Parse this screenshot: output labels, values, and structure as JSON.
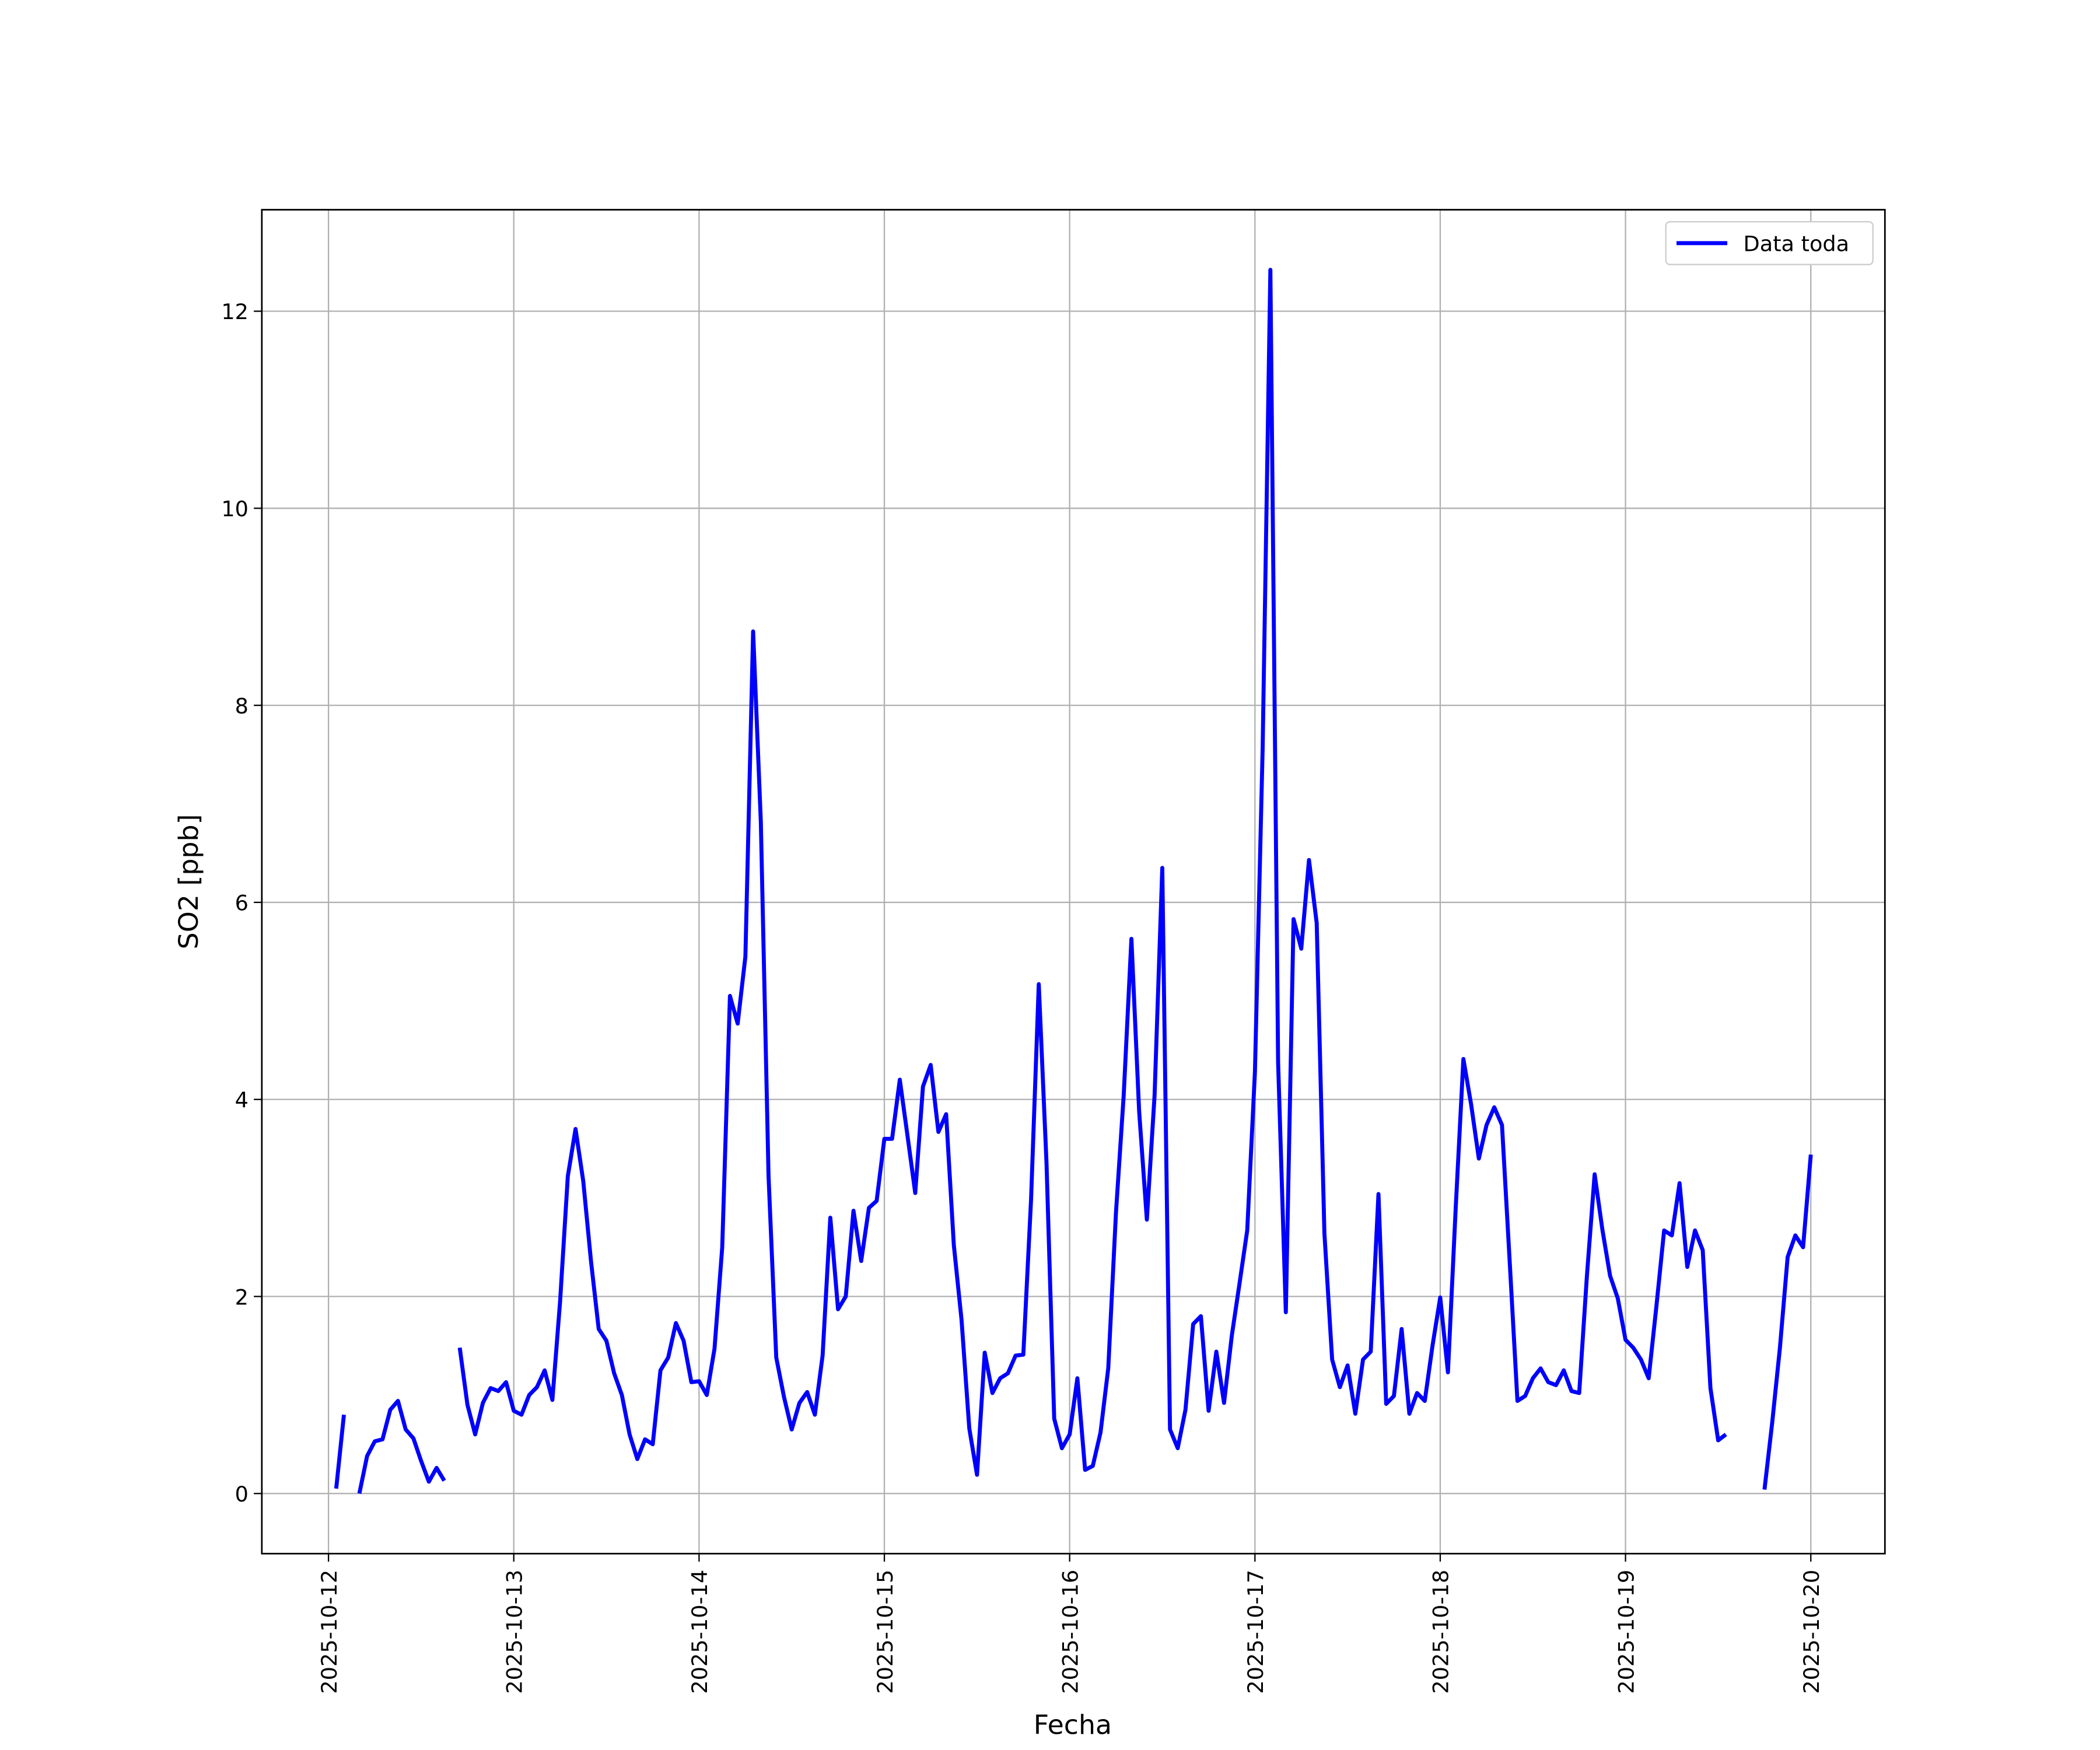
{
  "chart_data": {
    "type": "line",
    "xlabel": "Fecha",
    "ylabel": "SO2 [ppb]",
    "x": [
      "2025-10-12T01:00",
      "2025-10-12T02:00",
      "2025-10-12T03:00",
      "2025-10-12T04:00",
      "2025-10-12T05:00",
      "2025-10-12T06:00",
      "2025-10-12T07:00",
      "2025-10-12T08:00",
      "2025-10-12T09:00",
      "2025-10-12T10:00",
      "2025-10-12T11:00",
      "2025-10-12T12:00",
      "2025-10-12T13:00",
      "2025-10-12T14:00",
      "2025-10-12T15:00",
      "2025-10-12T16:00",
      "2025-10-12T17:00",
      "2025-10-12T18:00",
      "2025-10-12T19:00",
      "2025-10-12T20:00",
      "2025-10-12T21:00",
      "2025-10-12T22:00",
      "2025-10-12T23:00",
      "2025-10-13T00:00",
      "2025-10-13T01:00",
      "2025-10-13T02:00",
      "2025-10-13T03:00",
      "2025-10-13T04:00",
      "2025-10-13T05:00",
      "2025-10-13T06:00",
      "2025-10-13T07:00",
      "2025-10-13T08:00",
      "2025-10-13T09:00",
      "2025-10-13T10:00",
      "2025-10-13T11:00",
      "2025-10-13T12:00",
      "2025-10-13T13:00",
      "2025-10-13T14:00",
      "2025-10-13T15:00",
      "2025-10-13T16:00",
      "2025-10-13T17:00",
      "2025-10-13T18:00",
      "2025-10-13T19:00",
      "2025-10-13T20:00",
      "2025-10-13T21:00",
      "2025-10-13T22:00",
      "2025-10-13T23:00",
      "2025-10-14T00:00",
      "2025-10-14T01:00",
      "2025-10-14T02:00",
      "2025-10-14T03:00",
      "2025-10-14T04:00",
      "2025-10-14T05:00",
      "2025-10-14T06:00",
      "2025-10-14T07:00",
      "2025-10-14T08:00",
      "2025-10-14T09:00",
      "2025-10-14T10:00",
      "2025-10-14T11:00",
      "2025-10-14T12:00",
      "2025-10-14T13:00",
      "2025-10-14T14:00",
      "2025-10-14T15:00",
      "2025-10-14T16:00",
      "2025-10-14T17:00",
      "2025-10-14T18:00",
      "2025-10-14T19:00",
      "2025-10-14T20:00",
      "2025-10-14T21:00",
      "2025-10-14T22:00",
      "2025-10-14T23:00",
      "2025-10-15T00:00",
      "2025-10-15T01:00",
      "2025-10-15T02:00",
      "2025-10-15T03:00",
      "2025-10-15T04:00",
      "2025-10-15T05:00",
      "2025-10-15T06:00",
      "2025-10-15T07:00",
      "2025-10-15T08:00",
      "2025-10-15T09:00",
      "2025-10-15T10:00",
      "2025-10-15T11:00",
      "2025-10-15T12:00",
      "2025-10-15T13:00",
      "2025-10-15T14:00",
      "2025-10-15T15:00",
      "2025-10-15T16:00",
      "2025-10-15T17:00",
      "2025-10-15T18:00",
      "2025-10-15T19:00",
      "2025-10-15T20:00",
      "2025-10-15T21:00",
      "2025-10-15T22:00",
      "2025-10-15T23:00",
      "2025-10-16T00:00",
      "2025-10-16T01:00",
      "2025-10-16T02:00",
      "2025-10-16T03:00",
      "2025-10-16T04:00",
      "2025-10-16T05:00",
      "2025-10-16T06:00",
      "2025-10-16T07:00",
      "2025-10-16T08:00",
      "2025-10-16T09:00",
      "2025-10-16T10:00",
      "2025-10-16T11:00",
      "2025-10-16T12:00",
      "2025-10-16T13:00",
      "2025-10-16T14:00",
      "2025-10-16T15:00",
      "2025-10-16T16:00",
      "2025-10-16T17:00",
      "2025-10-16T18:00",
      "2025-10-16T19:00",
      "2025-10-16T20:00",
      "2025-10-16T21:00",
      "2025-10-16T22:00",
      "2025-10-16T23:00",
      "2025-10-17T00:00",
      "2025-10-17T01:00",
      "2025-10-17T02:00",
      "2025-10-17T03:00",
      "2025-10-17T04:00",
      "2025-10-17T05:00",
      "2025-10-17T06:00",
      "2025-10-17T07:00",
      "2025-10-17T08:00",
      "2025-10-17T09:00",
      "2025-10-17T10:00",
      "2025-10-17T11:00",
      "2025-10-17T12:00",
      "2025-10-17T13:00",
      "2025-10-17T14:00",
      "2025-10-17T15:00",
      "2025-10-17T16:00",
      "2025-10-17T17:00",
      "2025-10-17T18:00",
      "2025-10-17T19:00",
      "2025-10-17T20:00",
      "2025-10-17T21:00",
      "2025-10-17T22:00",
      "2025-10-17T23:00",
      "2025-10-18T00:00",
      "2025-10-18T01:00",
      "2025-10-18T02:00",
      "2025-10-18T03:00",
      "2025-10-18T04:00",
      "2025-10-18T05:00",
      "2025-10-18T06:00",
      "2025-10-18T07:00",
      "2025-10-18T08:00",
      "2025-10-18T09:00",
      "2025-10-18T10:00",
      "2025-10-18T11:00",
      "2025-10-18T12:00",
      "2025-10-18T13:00",
      "2025-10-18T14:00",
      "2025-10-18T15:00",
      "2025-10-18T16:00",
      "2025-10-18T17:00",
      "2025-10-18T18:00",
      "2025-10-18T19:00",
      "2025-10-18T20:00",
      "2025-10-18T21:00",
      "2025-10-18T22:00",
      "2025-10-18T23:00",
      "2025-10-19T00:00",
      "2025-10-19T01:00",
      "2025-10-19T02:00",
      "2025-10-19T03:00",
      "2025-10-19T04:00",
      "2025-10-19T05:00",
      "2025-10-19T06:00",
      "2025-10-19T07:00",
      "2025-10-19T08:00",
      "2025-10-19T09:00",
      "2025-10-19T10:00",
      "2025-10-19T11:00",
      "2025-10-19T12:00",
      "2025-10-19T13:00",
      "2025-10-19T14:00",
      "2025-10-19T15:00",
      "2025-10-19T16:00",
      "2025-10-19T17:00",
      "2025-10-19T18:00",
      "2025-10-19T19:00",
      "2025-10-19T20:00",
      "2025-10-19T21:00",
      "2025-10-19T22:00",
      "2025-10-19T23:00",
      "2025-10-20T00:00"
    ],
    "series": [
      {
        "name": "Data toda",
        "color": "#0000ff",
        "values": [
          0.05,
          0.8,
          null,
          0.0,
          0.38,
          0.53,
          0.55,
          0.85,
          0.94,
          0.65,
          0.56,
          0.33,
          0.12,
          0.26,
          0.13,
          null,
          1.48,
          0.9,
          0.6,
          0.92,
          1.07,
          1.04,
          1.13,
          0.84,
          0.8,
          1.0,
          1.08,
          1.25,
          0.95,
          1.95,
          3.22,
          3.7,
          3.17,
          2.36,
          1.67,
          1.55,
          1.22,
          1.0,
          0.6,
          0.35,
          0.55,
          0.5,
          1.25,
          1.38,
          1.73,
          1.55,
          1.13,
          1.14,
          1.0,
          1.47,
          2.5,
          5.05,
          4.77,
          5.45,
          8.75,
          6.82,
          3.22,
          1.38,
          0.98,
          0.65,
          0.92,
          1.03,
          0.8,
          1.4,
          2.8,
          1.87,
          2.0,
          2.87,
          2.36,
          2.9,
          2.97,
          3.6,
          3.6,
          4.2,
          3.63,
          3.05,
          4.13,
          4.35,
          3.67,
          3.85,
          2.52,
          1.76,
          0.66,
          0.19,
          1.43,
          1.02,
          1.17,
          1.22,
          1.4,
          1.41,
          2.98,
          5.17,
          3.36,
          0.76,
          0.46,
          0.6,
          1.17,
          0.24,
          0.28,
          0.62,
          1.27,
          2.85,
          4.04,
          5.63,
          3.88,
          2.78,
          4.04,
          6.35,
          0.65,
          0.46,
          0.85,
          1.72,
          1.8,
          0.84,
          1.44,
          0.92,
          1.6,
          2.13,
          2.67,
          4.28,
          7.57,
          12.42,
          4.38,
          1.84,
          5.83,
          5.53,
          6.43,
          5.79,
          2.64,
          1.36,
          1.08,
          1.3,
          0.81,
          1.36,
          1.44,
          3.04,
          0.91,
          0.99,
          1.67,
          0.81,
          1.02,
          0.94,
          1.5,
          1.99,
          1.23,
          2.89,
          4.41,
          3.95,
          3.4,
          3.74,
          3.92,
          3.74,
          2.35,
          0.94,
          0.99,
          1.17,
          1.27,
          1.13,
          1.1,
          1.25,
          1.04,
          1.02,
          2.21,
          3.24,
          2.68,
          2.21,
          1.98,
          1.56,
          1.48,
          1.36,
          1.17,
          1.9,
          2.67,
          2.62,
          3.15,
          2.3,
          2.67,
          2.47,
          1.07,
          0.54,
          0.6,
          null,
          null,
          null,
          null,
          0.04,
          0.72,
          1.48,
          2.4,
          2.62,
          2.5,
          3.44
        ]
      }
    ],
    "xlim": [
      "2025-10-11T15:22",
      "2025-10-20T09:36"
    ],
    "xticks": [
      "2025-10-12",
      "2025-10-13",
      "2025-10-14",
      "2025-10-15",
      "2025-10-16",
      "2025-10-17",
      "2025-10-18",
      "2025-10-19",
      "2025-10-20"
    ],
    "ylim": [
      -0.61,
      13.03
    ],
    "yticks": [
      0,
      2,
      4,
      6,
      8,
      10,
      12
    ],
    "grid": true,
    "legend": "upper right"
  }
}
